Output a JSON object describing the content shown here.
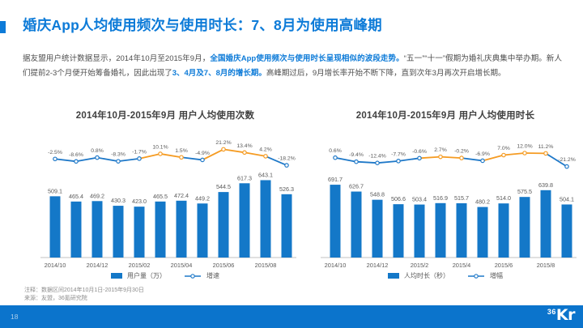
{
  "title": {
    "text": "婚庆App人均使用频次与使用时长：7、8月为使用高峰期"
  },
  "body": {
    "segments": [
      {
        "text": "据友盟用户统计数据显示，2014年10月至2015年9月，",
        "highlight": false
      },
      {
        "text": "全国婚庆App使用频次与使用时长呈现相似的波段走势。",
        "highlight": true
      },
      {
        "text": "“五一”“十一”假期为婚礼庆典集中举办期。新人们提前2-3个月便开始筹备婚礼，因此出现了",
        "highlight": false
      },
      {
        "text": "3、4月及7、8月的增长期。",
        "highlight": true
      },
      {
        "text": "高峰期过后，9月增长率开始不断下降，直到次年3月再次开启增长期。",
        "highlight": false
      }
    ]
  },
  "chart_data": [
    {
      "type": "bar+line",
      "title": "2014年10月-2015年9月 用户人均使用次数",
      "x_tick_labels": [
        "2014/10",
        "2014/12",
        "2015/02",
        "2015/04",
        "2015/06",
        "2015/08"
      ],
      "x_tick_positions": [
        0,
        2,
        4,
        6,
        8,
        10
      ],
      "bar_series": {
        "name": "用户量（万）",
        "values": [
          509.1,
          465.4,
          469.2,
          430.3,
          423.0,
          465.5,
          472.4,
          449.2,
          544.5,
          617.3,
          643.1,
          526.3
        ]
      },
      "line_series": {
        "name": "增速",
        "values_pct": [
          -2.5,
          -8.6,
          0.8,
          -8.3,
          -1.7,
          10.1,
          1.5,
          -4.9,
          21.2,
          13.4,
          4.2,
          -18.2
        ],
        "segment_highlight": [
          false,
          false,
          false,
          false,
          true,
          true,
          false,
          true,
          true,
          true,
          false
        ]
      },
      "ylim_bars": [
        0,
        700
      ],
      "grid": false,
      "legend_position": "bottom"
    },
    {
      "type": "bar+line",
      "title": "2014年10月-2015年9月 用户人均使用时长",
      "x_tick_labels": [
        "2014/10",
        "2014/12",
        "2015/2",
        "2015/4",
        "2015/6",
        "2015/8"
      ],
      "x_tick_positions": [
        0,
        2,
        4,
        6,
        8,
        10
      ],
      "bar_series": {
        "name": "人均时长（秒）",
        "values": [
          691.7,
          626.7,
          548.8,
          506.6,
          503.4,
          516.9,
          515.7,
          480.2,
          514.0,
          575.5,
          639.8,
          504.1
        ]
      },
      "line_series": {
        "name": "增幅",
        "values_pct": [
          0.6,
          -9.4,
          -12.4,
          -7.7,
          -0.6,
          2.7,
          -0.2,
          -6.9,
          7.0,
          12.0,
          11.2,
          -21.2
        ],
        "segment_highlight": [
          false,
          false,
          false,
          false,
          true,
          true,
          false,
          true,
          true,
          true,
          false
        ]
      },
      "ylim_bars": [
        0,
        800
      ],
      "grid": false,
      "legend_position": "bottom"
    }
  ],
  "notes": {
    "line1": "注释：数据区间2014年10月1日-2015年9月30日",
    "line2": "来源：友盟，36氪研究院"
  },
  "footer": {
    "page_number": "18",
    "logo_small": "36",
    "logo_big": "Kr"
  },
  "colors": {
    "accent": "#0d7bd8",
    "bar": "#1478c8",
    "line_blue": "#1e78c8",
    "line_orange": "#f59b22",
    "text_dark": "#404040",
    "text_gray": "#595959",
    "text_note": "#8c8c8c",
    "axis": "#c0c0c0",
    "footer_bar": "#0b74cc"
  }
}
